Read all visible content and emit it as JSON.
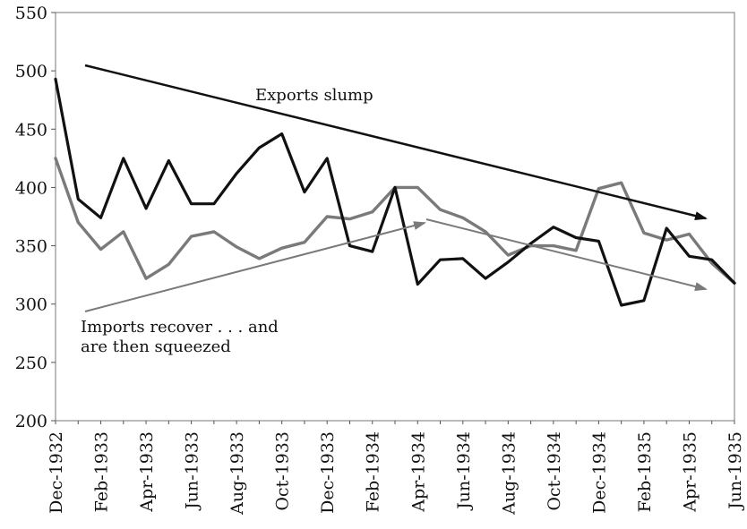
{
  "chart_data": {
    "type": "line",
    "title": "",
    "xlabel": "",
    "ylabel": "",
    "ylim": [
      200,
      550
    ],
    "yticks": [
      200,
      250,
      300,
      350,
      400,
      450,
      500,
      550
    ],
    "grid": false,
    "x": [
      "Dec-1932",
      "Jan-1933",
      "Feb-1933",
      "Mar-1933",
      "Apr-1933",
      "May-1933",
      "Jun-1933",
      "Jul-1933",
      "Aug-1933",
      "Sep-1933",
      "Oct-1933",
      "Nov-1933",
      "Dec-1933",
      "Jan-1934",
      "Feb-1934",
      "Mar-1934",
      "Apr-1934",
      "May-1934",
      "Jun-1934",
      "Jul-1934",
      "Aug-1934",
      "Sep-1934",
      "Oct-1934",
      "Nov-1934",
      "Dec-1934",
      "Jan-1935",
      "Feb-1935",
      "Mar-1935",
      "Apr-1935",
      "May-1935",
      "Jun-1935"
    ],
    "x_tick_labels": [
      "Dec-1932",
      "Feb-1933",
      "Apr-1933",
      "Jun-1933",
      "Aug-1933",
      "Oct-1933",
      "Dec-1933",
      "Feb-1934",
      "Apr-1934",
      "Jun-1934",
      "Aug-1934",
      "Oct-1934",
      "Dec-1934",
      "Feb-1935",
      "Apr-1935",
      "Jun-1935"
    ],
    "series": [
      {
        "color": "#111111",
        "values": [
          493,
          390,
          374,
          425,
          382,
          423,
          386,
          386,
          412,
          434,
          446,
          396,
          425,
          350,
          345,
          400,
          317,
          338,
          339,
          322,
          336,
          352,
          366,
          357,
          354,
          299,
          303,
          365,
          341,
          338,
          318
        ]
      },
      {
        "color": "#7a7a7a",
        "values": [
          425,
          370,
          347,
          362,
          322,
          334,
          358,
          362,
          349,
          339,
          348,
          353,
          375,
          373,
          379,
          400,
          400,
          381,
          374,
          362,
          342,
          350,
          350,
          346,
          399,
          404,
          361,
          355,
          360,
          335,
          318
        ]
      }
    ],
    "annotations": [
      {
        "text": "Exports slump",
        "color": "#111111"
      },
      {
        "text": "Imports recover . . . and",
        "color": "#111111"
      },
      {
        "text": "are then squeezed",
        "color": "#111111"
      }
    ]
  }
}
